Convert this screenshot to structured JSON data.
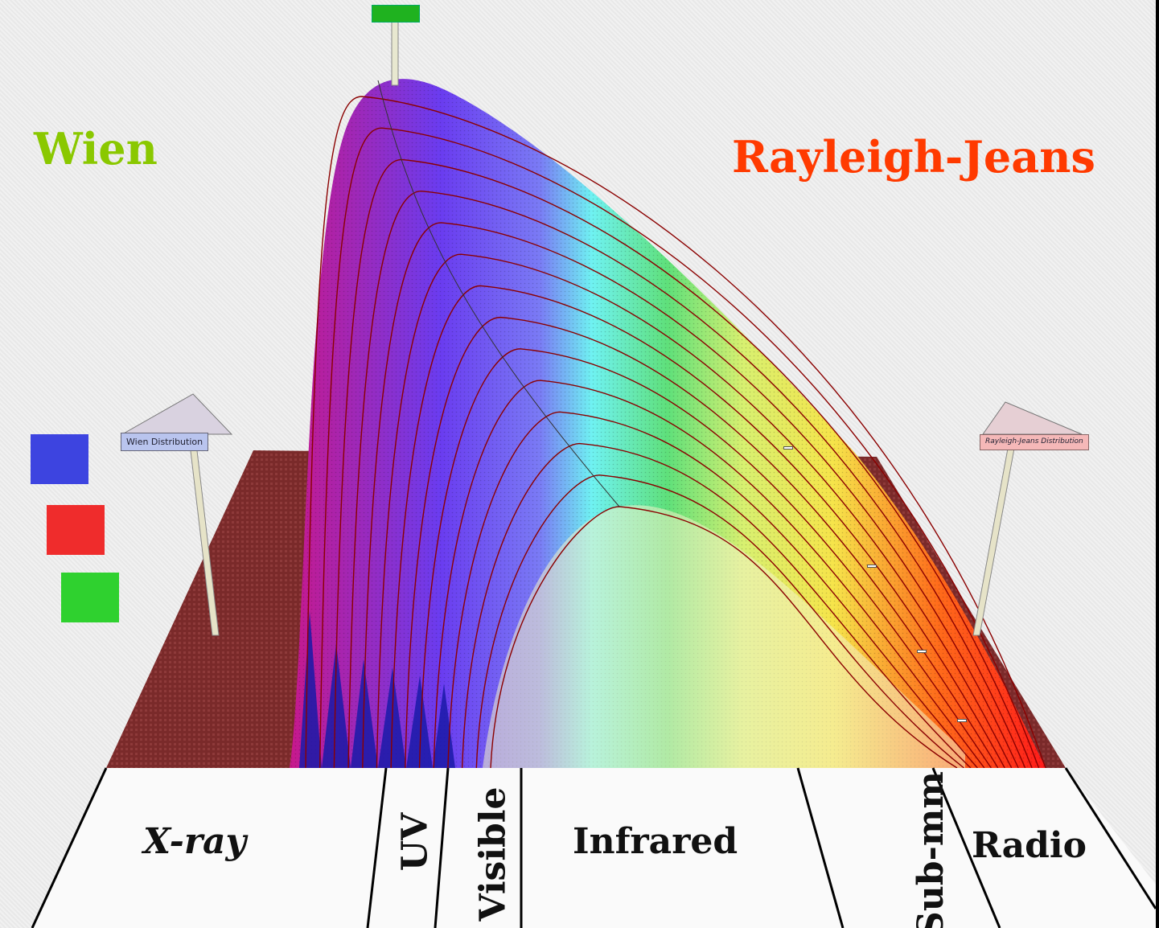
{
  "labels": {
    "wien": "Wien",
    "rayleigh_jeans": "Rayleigh-Jeans"
  },
  "bands": {
    "xray": "X-ray",
    "uv": "UV",
    "visible": "Visible",
    "infrared": "Infrared",
    "submm": "Sub-mm",
    "radio": "Radio"
  },
  "signs": {
    "wien": "Wien Distribution",
    "rayleigh_jeans": "Rayleigh-Jeans Distribution"
  },
  "colors": {
    "wien": "#8ac800",
    "rayleigh_jeans": "#ff3a00",
    "floor": "#7a2a2a",
    "curve_line": "#8b0000",
    "peak_marker": "#1fb21f"
  }
}
